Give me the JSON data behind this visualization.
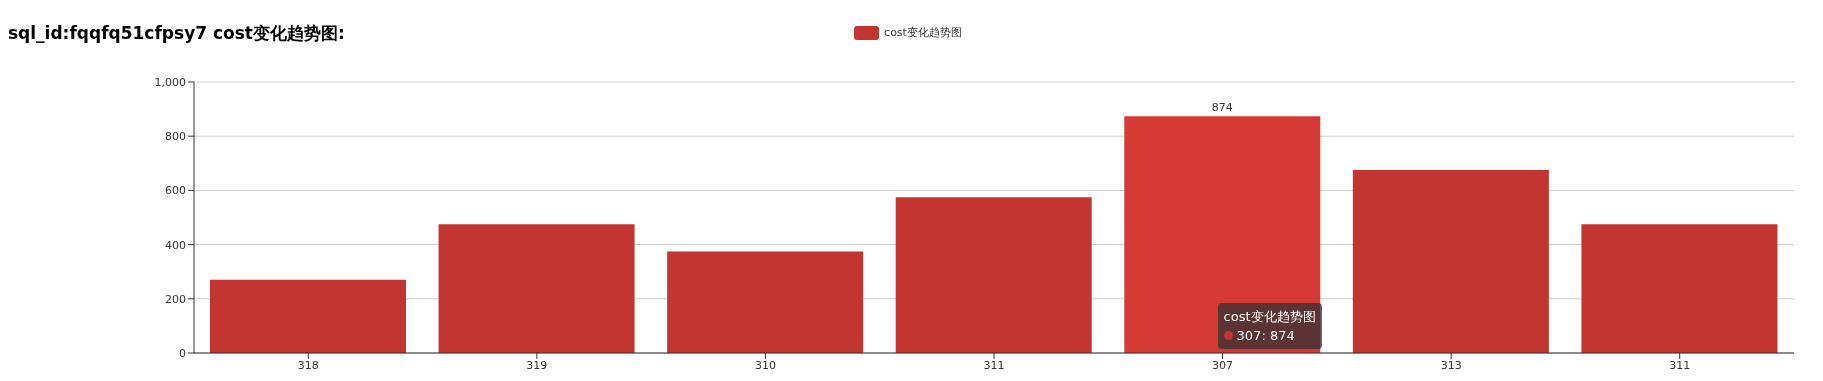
{
  "chart_data": {
    "type": "bar",
    "title": "sql_id:fqqfq51cfpsy7 cost变化趋势图:",
    "categories": [
      "318",
      "319",
      "310",
      "311",
      "307",
      "313",
      "311"
    ],
    "series": [
      {
        "name": "cost变化趋势图",
        "color": "#c23531",
        "colors": [
          "#c23531",
          "#c23531",
          "#c23531",
          "#c23531",
          "#d63a35",
          "#c23531",
          "#c23531"
        ],
        "values": [
          270,
          475,
          375,
          575,
          874,
          675,
          475
        ],
        "value_labels": [
          null,
          null,
          null,
          null,
          "874",
          null,
          null
        ]
      }
    ],
    "ylim": [
      0,
      1000
    ],
    "yticks": [
      0,
      200,
      400,
      600,
      800,
      {
        "value": 1000,
        "label": "1,000"
      }
    ],
    "grid": "y",
    "legend": "top",
    "annotations": [
      "307: 874"
    ]
  }
}
